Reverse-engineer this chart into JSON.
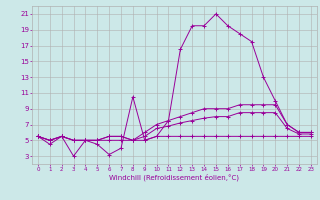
{
  "title": "",
  "xlabel": "Windchill (Refroidissement éolien,°C)",
  "background_color": "#cce8e8",
  "grid_color": "#b0b0b0",
  "line_color": "#990099",
  "xlim": [
    -0.5,
    23.5
  ],
  "ylim": [
    2,
    22
  ],
  "yticks": [
    3,
    5,
    7,
    9,
    11,
    13,
    15,
    17,
    19,
    21
  ],
  "xticks": [
    0,
    1,
    2,
    3,
    4,
    5,
    6,
    7,
    8,
    9,
    10,
    11,
    12,
    13,
    14,
    15,
    16,
    17,
    18,
    19,
    20,
    21,
    22,
    23
  ],
  "line1_x": [
    0,
    1,
    2,
    3,
    4,
    5,
    6,
    7,
    8,
    9,
    10,
    11,
    12,
    13,
    14,
    15,
    16,
    17,
    18,
    19,
    20,
    21,
    22,
    23
  ],
  "line1_y": [
    5.5,
    4.5,
    5.5,
    3.0,
    5.0,
    4.5,
    3.2,
    4.0,
    10.5,
    5.0,
    5.5,
    7.5,
    16.5,
    19.5,
    19.5,
    21.0,
    19.5,
    18.5,
    17.5,
    13.0,
    10.0,
    7.0,
    6.0,
    6.0
  ],
  "line2_x": [
    0,
    1,
    2,
    3,
    4,
    5,
    6,
    7,
    8,
    9,
    10,
    11,
    12,
    13,
    14,
    15,
    16,
    17,
    18,
    19,
    20,
    21,
    22,
    23
  ],
  "line2_y": [
    5.5,
    5.0,
    5.5,
    5.0,
    5.0,
    5.0,
    5.5,
    5.5,
    5.0,
    6.0,
    7.0,
    7.5,
    8.0,
    8.5,
    9.0,
    9.0,
    9.0,
    9.5,
    9.5,
    9.5,
    9.5,
    7.0,
    6.0,
    6.0
  ],
  "line3_x": [
    0,
    1,
    2,
    3,
    4,
    5,
    6,
    7,
    8,
    9,
    10,
    11,
    12,
    13,
    14,
    15,
    16,
    17,
    18,
    19,
    20,
    21,
    22,
    23
  ],
  "line3_y": [
    5.5,
    5.0,
    5.5,
    5.0,
    5.0,
    5.0,
    5.5,
    5.5,
    5.0,
    5.5,
    6.5,
    6.8,
    7.2,
    7.5,
    7.8,
    8.0,
    8.0,
    8.5,
    8.5,
    8.5,
    8.5,
    6.5,
    5.8,
    5.8
  ],
  "line4_x": [
    0,
    1,
    2,
    3,
    4,
    5,
    6,
    7,
    8,
    9,
    10,
    11,
    12,
    13,
    14,
    15,
    16,
    17,
    18,
    19,
    20,
    21,
    22,
    23
  ],
  "line4_y": [
    5.5,
    5.0,
    5.5,
    5.0,
    5.0,
    5.0,
    5.0,
    5.0,
    5.0,
    5.0,
    5.5,
    5.5,
    5.5,
    5.5,
    5.5,
    5.5,
    5.5,
    5.5,
    5.5,
    5.5,
    5.5,
    5.5,
    5.5,
    5.5
  ]
}
